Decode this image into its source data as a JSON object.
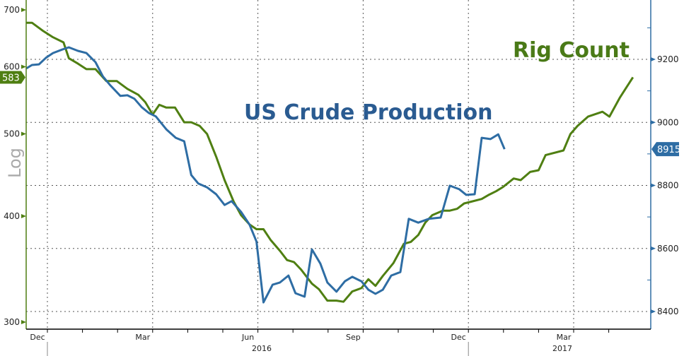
{
  "chart_data": {
    "type": "line",
    "title": "",
    "annotations": [
      "Rig Count",
      "US Crude Production"
    ],
    "x_unit": "months since Dec 2015",
    "xtick_labels": [
      "Dec",
      "Mar",
      "Jun",
      "Sep",
      "Dec",
      "Mar"
    ],
    "year_labels": [
      "2016",
      "2017"
    ],
    "left_axis": {
      "label": "Log",
      "scale": "log",
      "ticks": [
        "300",
        "400",
        "500",
        "600",
        "700"
      ],
      "range": [
        300,
        700
      ],
      "last_value_label": "583"
    },
    "right_axis": {
      "label": "",
      "scale": "linear",
      "ticks": [
        "8400",
        "8600",
        "8800",
        "9000",
        "9200"
      ],
      "range": [
        8400,
        9200
      ],
      "last_value_label": "8915"
    },
    "colors": {
      "rig": "#4f7f12",
      "crude": "#2e6da4"
    },
    "series": [
      {
        "name": "Rig Count",
        "axis": "left",
        "points": [
          [
            -0.6,
            676
          ],
          [
            -0.44,
            676
          ],
          [
            -0.14,
            662
          ],
          [
            0.16,
            650
          ],
          [
            0.46,
            641
          ],
          [
            0.61,
            614
          ],
          [
            0.87,
            605
          ],
          [
            1.11,
            596
          ],
          [
            1.37,
            596
          ],
          [
            1.68,
            577
          ],
          [
            1.98,
            577
          ],
          [
            2.28,
            565
          ],
          [
            2.59,
            556
          ],
          [
            2.79,
            545
          ],
          [
            3.0,
            527
          ],
          [
            3.19,
            541
          ],
          [
            3.39,
            537
          ],
          [
            3.64,
            537
          ],
          [
            3.9,
            516
          ],
          [
            4.1,
            516
          ],
          [
            4.34,
            511
          ],
          [
            4.55,
            500
          ],
          [
            4.81,
            470
          ],
          [
            5.05,
            441
          ],
          [
            5.31,
            416
          ],
          [
            5.52,
            401
          ],
          [
            5.76,
            391
          ],
          [
            5.96,
            386
          ],
          [
            6.16,
            386
          ],
          [
            6.36,
            375
          ],
          [
            6.63,
            364
          ],
          [
            6.83,
            355
          ],
          [
            7.03,
            353
          ],
          [
            7.23,
            346
          ],
          [
            7.54,
            333
          ],
          [
            7.74,
            328
          ],
          [
            7.98,
            318
          ],
          [
            8.24,
            318
          ],
          [
            8.44,
            317
          ],
          [
            8.69,
            326
          ],
          [
            8.95,
            329
          ],
          [
            9.15,
            337
          ],
          [
            9.35,
            331
          ],
          [
            9.56,
            340
          ],
          [
            9.86,
            352
          ],
          [
            10.16,
            371
          ],
          [
            10.36,
            373
          ],
          [
            10.57,
            380
          ],
          [
            10.77,
            393
          ],
          [
            10.97,
            401
          ],
          [
            11.27,
            406
          ],
          [
            11.47,
            406
          ],
          [
            11.68,
            408
          ],
          [
            11.88,
            414
          ],
          [
            12.08,
            416
          ],
          [
            12.38,
            419
          ],
          [
            12.59,
            424
          ],
          [
            12.79,
            428
          ],
          [
            12.99,
            433
          ],
          [
            13.29,
            443
          ],
          [
            13.49,
            441
          ],
          [
            13.76,
            451
          ],
          [
            14.0,
            453
          ],
          [
            14.2,
            472
          ],
          [
            14.71,
            478
          ],
          [
            14.91,
            500
          ],
          [
            15.11,
            511
          ],
          [
            15.41,
            524
          ],
          [
            15.82,
            531
          ],
          [
            16.02,
            524
          ],
          [
            16.32,
            552
          ],
          [
            16.69,
            583
          ]
        ]
      },
      {
        "name": "US Crude Production",
        "axis": "right",
        "points": [
          [
            -0.6,
            9171
          ],
          [
            -0.44,
            9182
          ],
          [
            -0.24,
            9184
          ],
          [
            -0.04,
            9205
          ],
          [
            0.16,
            9220
          ],
          [
            0.42,
            9231
          ],
          [
            0.61,
            9238
          ],
          [
            0.87,
            9227
          ],
          [
            1.11,
            9220
          ],
          [
            1.37,
            9191
          ],
          [
            1.58,
            9146
          ],
          [
            1.78,
            9119
          ],
          [
            2.08,
            9084
          ],
          [
            2.28,
            9086
          ],
          [
            2.48,
            9075
          ],
          [
            2.69,
            9048
          ],
          [
            2.89,
            9030
          ],
          [
            3.09,
            9019
          ],
          [
            3.39,
            8978
          ],
          [
            3.66,
            8951
          ],
          [
            3.9,
            8940
          ],
          [
            4.1,
            8833
          ],
          [
            4.3,
            8806
          ],
          [
            4.55,
            8794
          ],
          [
            4.81,
            8772
          ],
          [
            5.05,
            8738
          ],
          [
            5.25,
            8750
          ],
          [
            5.52,
            8716
          ],
          [
            5.76,
            8676
          ],
          [
            5.96,
            8622
          ],
          [
            6.16,
            8429
          ],
          [
            6.42,
            8485
          ],
          [
            6.63,
            8492
          ],
          [
            6.87,
            8514
          ],
          [
            7.07,
            8458
          ],
          [
            7.33,
            8447
          ],
          [
            7.54,
            8597
          ],
          [
            7.78,
            8552
          ],
          [
            7.98,
            8492
          ],
          [
            8.24,
            8463
          ],
          [
            8.48,
            8496
          ],
          [
            8.69,
            8510
          ],
          [
            8.95,
            8496
          ],
          [
            9.15,
            8469
          ],
          [
            9.35,
            8456
          ],
          [
            9.56,
            8469
          ],
          [
            9.8,
            8514
          ],
          [
            10.06,
            8525
          ],
          [
            10.3,
            8694
          ],
          [
            10.57,
            8682
          ],
          [
            10.87,
            8694
          ],
          [
            11.21,
            8698
          ],
          [
            11.47,
            8799
          ],
          [
            11.74,
            8788
          ],
          [
            11.94,
            8770
          ],
          [
            12.18,
            8772
          ],
          [
            12.38,
            8951
          ],
          [
            12.63,
            8947
          ],
          [
            12.85,
            8962
          ],
          [
            13.03,
            8915
          ]
        ]
      }
    ]
  }
}
